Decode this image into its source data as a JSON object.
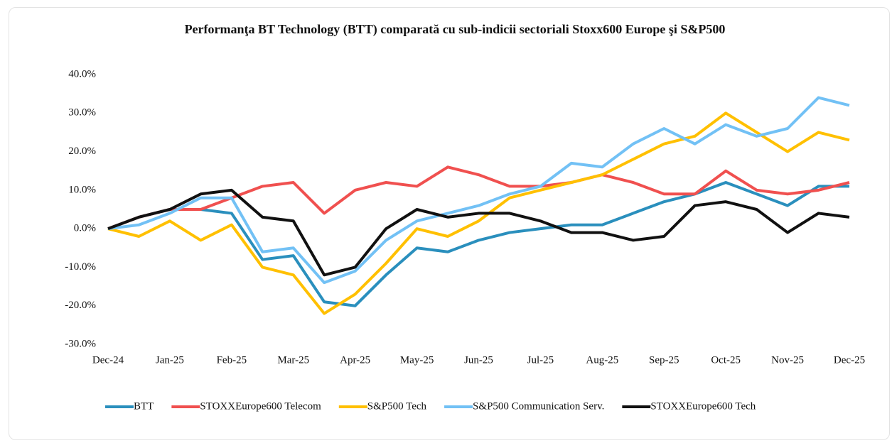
{
  "chart_data": {
    "type": "line",
    "title": "Performanţa BT Technology (BTT) comparată cu sub-indicii sectoriali Stoxx600 Europe şi S&P500",
    "categories": [
      "Dec-24",
      null,
      "Jan-25",
      null,
      "Feb-25",
      null,
      "Mar-25",
      null,
      "Apr-25",
      null,
      "May-25",
      null,
      "Jun-25",
      null,
      "Jul-25",
      null,
      "Aug-25",
      null,
      "Sep-25",
      null,
      "Oct-25",
      null,
      "Nov-25",
      null,
      "Dec-25"
    ],
    "series": [
      {
        "name": "BTT",
        "color": "#2a8fbd",
        "values": [
          0,
          3,
          5,
          5,
          4,
          -8,
          -7,
          -19,
          -20,
          -12,
          -5,
          -6,
          -3,
          -1,
          0,
          1,
          1,
          4,
          7,
          9,
          12,
          9,
          6,
          11,
          11
        ]
      },
      {
        "name": "STOXXEurope600 Telecom",
        "color": "#f0504f",
        "values": [
          0,
          3,
          5,
          5,
          8,
          11,
          12,
          4,
          10,
          12,
          11,
          16,
          14,
          11,
          11,
          12,
          14,
          12,
          9,
          9,
          15,
          10,
          9,
          10,
          12
        ]
      },
      {
        "name": "S&P500 Tech",
        "color": "#ffc000",
        "values": [
          0,
          -2,
          2,
          -3,
          1,
          -10,
          -12,
          -22,
          -17,
          -9,
          0,
          -2,
          2,
          8,
          10,
          12,
          14,
          18,
          22,
          24,
          30,
          25,
          20,
          25,
          23
        ]
      },
      {
        "name": "S&P500 Communication Serv.",
        "color": "#72c1f5",
        "values": [
          0,
          1,
          4,
          8,
          8,
          -6,
          -5,
          -14,
          -11,
          -3,
          2,
          4,
          6,
          9,
          11,
          17,
          16,
          22,
          26,
          22,
          27,
          24,
          26,
          34,
          32
        ]
      },
      {
        "name": "STOXXEurope600 Tech",
        "color": "#111111",
        "values": [
          0,
          3,
          5,
          9,
          10,
          3,
          2,
          -12,
          -10,
          0,
          5,
          3,
          4,
          4,
          2,
          -1,
          -1,
          -3,
          -2,
          6,
          7,
          5,
          -1,
          4,
          3
        ]
      }
    ],
    "ylim": [
      -30,
      40
    ],
    "yticks": [
      {
        "value": -30,
        "label": "-30.0%"
      },
      {
        "value": -20,
        "label": "-20.0%"
      },
      {
        "value": -10,
        "label": "-10.0%"
      },
      {
        "value": 0,
        "label": "0.0%"
      },
      {
        "value": 10,
        "label": "10.0%"
      },
      {
        "value": 20,
        "label": "20.0%"
      },
      {
        "value": 30,
        "label": "30.0%"
      },
      {
        "value": 40,
        "label": "40.0%"
      }
    ],
    "grid": false,
    "legend": "bottom"
  }
}
